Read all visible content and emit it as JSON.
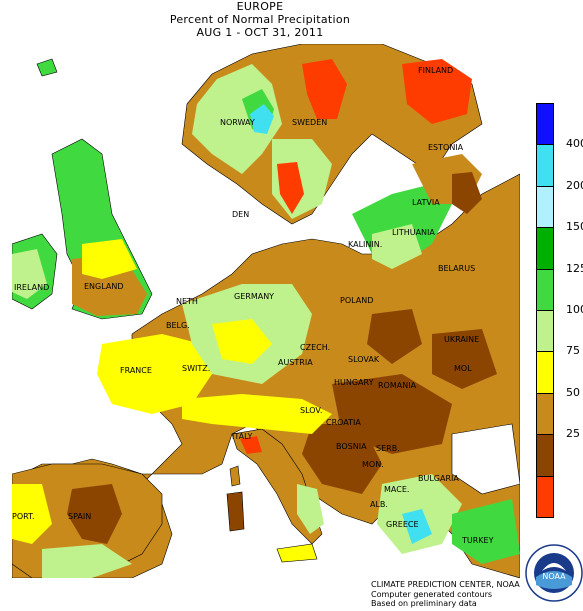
{
  "header": {
    "region": "EUROPE",
    "title": "Percent of Normal Precipitation",
    "period": "AUG  1 - OCT 31, 2011"
  },
  "palette": {
    "lt25": "#ff3c00",
    "p25_50": "#8b4500",
    "p50_75": "#c98a1c",
    "p75_100": "#ffff00",
    "p100_125": "#bff28c",
    "p125_150": "#40d940",
    "p150_200": "#00a000",
    "p200_400": "#b0f0ff",
    "p400_plus": "#40e0f0",
    "top": "#0000ff",
    "ocean": "#ffffff"
  },
  "legend": {
    "ticks": [
      "400",
      "200",
      "150",
      "125",
      "100",
      "75",
      "50",
      "25"
    ],
    "swatches": [
      {
        "color": "#1010ff"
      },
      {
        "color": "#40e0f0"
      },
      {
        "color": "#b0f0ff"
      },
      {
        "color": "#00b000"
      },
      {
        "color": "#40d940"
      },
      {
        "color": "#bff28c"
      },
      {
        "color": "#ffff00"
      },
      {
        "color": "#c98a1c"
      },
      {
        "color": "#8b4500"
      },
      {
        "color": "#ff3c00"
      }
    ]
  },
  "countries": {
    "finland": "FINLAND",
    "norway": "NORWAY",
    "sweden": "SWEDEN",
    "estonia": "ESTONIA",
    "latvia": "LATVIA",
    "lithuania": "LITHUANIA",
    "kaliningrad": "KALININ.",
    "belarus": "BELARUS",
    "denmark": "DEN",
    "ireland": "IRELAND",
    "england": "ENGLAND",
    "neth": "NETH",
    "belg": "BELG.",
    "germany": "GERMANY",
    "poland": "POLAND",
    "czech": "CZECH.",
    "slovak": "SLOVAK",
    "ukraine": "UKRAINE",
    "moldova": "MOL",
    "france": "FRANCE",
    "switz": "SWITZ.",
    "austria": "AUSTRIA",
    "hungary": "HUNGARY",
    "romania": "ROMANIA",
    "slov": "SLOV.",
    "croatia": "CROATIA",
    "bosnia": "BOSNIA",
    "serb": "SERB.",
    "mon": "MON.",
    "bulgaria": "BULGARIA",
    "italy": "ITALY",
    "port": "PORT.",
    "spain": "SPAIN",
    "alb": "ALB.",
    "mace": "MACE.",
    "greece": "GREECE",
    "turkey": "TURKEY"
  },
  "credit": {
    "line1": "CLIMATE PREDICTION CENTER, NOAA",
    "line2": "Computer generated contours",
    "line3": "Based on preliminary data"
  },
  "logo": {
    "text": "NOAA"
  }
}
